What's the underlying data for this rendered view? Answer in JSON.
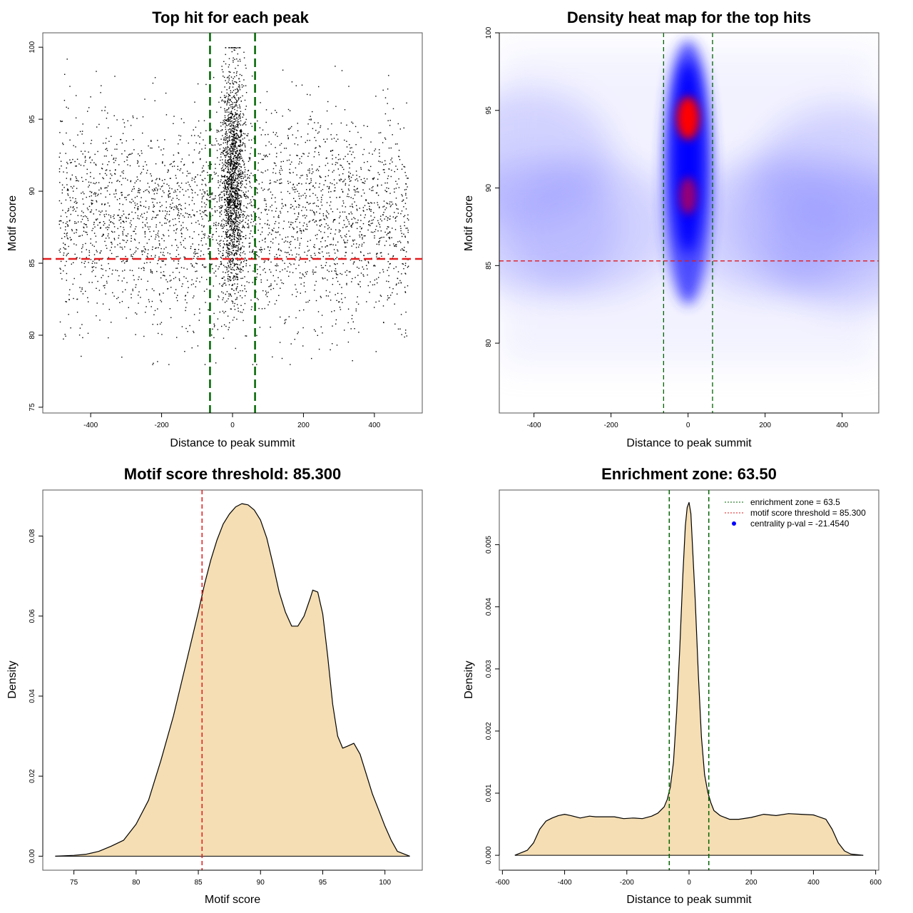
{
  "chart_data": [
    {
      "id": "scatter",
      "type": "scatter",
      "title": "Top hit for each peak",
      "xlabel": "Distance to peak summit",
      "ylabel": "Motif score",
      "xlim": [
        -535,
        535
      ],
      "ylim": [
        74.6,
        101.0
      ],
      "xticks": [
        -400,
        -200,
        0,
        200,
        400
      ],
      "yticks": [
        75,
        80,
        85,
        90,
        95,
        100
      ],
      "threshold": 85.3,
      "enrichment_zone": [
        -63.5,
        63.5
      ],
      "background_x_range": [
        -490,
        495
      ],
      "background_y_range": [
        78,
        99.5
      ],
      "point_color": "#000000",
      "threshold_color": "#e31a1c",
      "zone_color": "#006400"
    },
    {
      "id": "heatmap",
      "type": "heatmap",
      "title": "Density heat map for the top hits",
      "xlabel": "Distance to peak summit",
      "ylabel": "Motif score",
      "xlim": [
        -490,
        495
      ],
      "ylim": [
        75.5,
        100.0
      ],
      "xticks": [
        -400,
        -200,
        0,
        200,
        400
      ],
      "yticks": [
        80,
        85,
        90,
        95,
        100
      ],
      "threshold": 85.3,
      "enrichment_zone": [
        -63.5,
        63.5
      ],
      "hotspots": [
        {
          "x": 0,
          "y": 94.5,
          "level": "high"
        },
        {
          "x": 0,
          "y": 89.5,
          "level": "medium"
        }
      ],
      "colors": {
        "low": "#ffffff",
        "mid": "#0000ff",
        "high": "#ff0000"
      }
    },
    {
      "id": "motif-density",
      "type": "area",
      "title": "Motif score threshold: 85.300",
      "xlabel": "Motif score",
      "ylabel": "Density",
      "xlim": [
        72.5,
        103
      ],
      "ylim": [
        -0.0035,
        0.0915
      ],
      "xticks": [
        75,
        80,
        85,
        90,
        95,
        100
      ],
      "yticks": [
        0.0,
        0.02,
        0.04,
        0.06,
        0.08
      ],
      "ytick_labels": [
        "0.00",
        "0.02",
        "0.04",
        "0.06",
        "0.08"
      ],
      "threshold": 85.3,
      "fill_color": "#f5deb3",
      "x": [
        73.5,
        75,
        76,
        77,
        78,
        79,
        80,
        81,
        82,
        83,
        84,
        85,
        85.5,
        86,
        86.5,
        87,
        87.5,
        88,
        88.5,
        89,
        89.5,
        90,
        90.5,
        91,
        91.5,
        92,
        92.5,
        93,
        93.5,
        94,
        94.2,
        94.6,
        95,
        95.4,
        95.8,
        96.2,
        96.6,
        97,
        97.5,
        98,
        98.5,
        99,
        99.5,
        100,
        100.5,
        101,
        102
      ],
      "y": [
        0.0,
        0.0002,
        0.0005,
        0.0012,
        0.0025,
        0.004,
        0.008,
        0.014,
        0.024,
        0.035,
        0.048,
        0.061,
        0.068,
        0.074,
        0.079,
        0.083,
        0.0855,
        0.0873,
        0.0881,
        0.0878,
        0.0865,
        0.084,
        0.0795,
        0.073,
        0.066,
        0.061,
        0.0575,
        0.0575,
        0.06,
        0.0645,
        0.0665,
        0.066,
        0.0605,
        0.05,
        0.038,
        0.03,
        0.027,
        0.0275,
        0.0282,
        0.0255,
        0.0205,
        0.0155,
        0.0115,
        0.0075,
        0.004,
        0.0012,
        0.0
      ]
    },
    {
      "id": "distance-density",
      "type": "area",
      "title": "Enrichment zone: 63.50",
      "xlabel": "Distance to peak summit",
      "ylabel": "Density",
      "xlim": [
        -610,
        610
      ],
      "ylim": [
        -0.00024,
        0.00588
      ],
      "xticks": [
        -600,
        -400,
        -200,
        0,
        200,
        400,
        600
      ],
      "yticks": [
        0.0,
        0.001,
        0.002,
        0.003,
        0.004,
        0.005
      ],
      "ytick_labels": [
        "0.000",
        "0.001",
        "0.002",
        "0.003",
        "0.004",
        "0.005"
      ],
      "enrichment_zone": [
        -63.5,
        63.5
      ],
      "fill_color": "#f5deb3",
      "x": [
        -560,
        -520,
        -500,
        -480,
        -460,
        -440,
        -420,
        -400,
        -380,
        -350,
        -320,
        -300,
        -270,
        -240,
        -210,
        -180,
        -150,
        -120,
        -100,
        -80,
        -70,
        -60,
        -50,
        -40,
        -30,
        -20,
        -12,
        -6,
        0,
        6,
        12,
        20,
        30,
        40,
        50,
        60,
        70,
        80,
        100,
        130,
        160,
        200,
        240,
        280,
        320,
        360,
        400,
        440,
        460,
        480,
        500,
        520,
        560
      ],
      "y": [
        0.0,
        8e-05,
        0.0002,
        0.00042,
        0.00055,
        0.0006,
        0.00064,
        0.00066,
        0.00064,
        0.0006,
        0.00063,
        0.00062,
        0.00062,
        0.00062,
        0.00059,
        0.0006,
        0.00059,
        0.00063,
        0.00068,
        0.00078,
        0.0009,
        0.0011,
        0.0015,
        0.0023,
        0.0033,
        0.0045,
        0.0053,
        0.0056,
        0.00568,
        0.0055,
        0.0049,
        0.0041,
        0.0029,
        0.0019,
        0.0013,
        0.00102,
        0.00085,
        0.00072,
        0.00064,
        0.00058,
        0.00058,
        0.00061,
        0.00066,
        0.00064,
        0.00067,
        0.00066,
        0.00065,
        0.00058,
        0.00042,
        0.0002,
        7e-05,
        2e-05,
        0.0
      ],
      "legend": [
        {
          "label": "enrichment zone = 63.5",
          "style": "dotted",
          "color": "#006400"
        },
        {
          "label": "motif score threshold = 85.300",
          "style": "dotted",
          "color": "#e31a1c"
        },
        {
          "label": "centrality p-val = -21.4540",
          "style": "point",
          "color": "#0000ff"
        }
      ],
      "legend_position": "top-right"
    }
  ]
}
